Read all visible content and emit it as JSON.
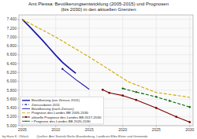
{
  "chart_data": {
    "type": "line",
    "title": "Amt Plessa: Bevölkerungsentwicklung (2005-2015) und Prognosen",
    "subtitle": "(bis 2030) in den aktuellen Grenzen",
    "annotations": [
      "by Hans K. Ohläck",
      "Quellen: Amt Statistik Berlin-Brandenburg, Landkreis Elbe-Elster und Gemeinde"
    ],
    "xlim": [
      2004.5,
      2030.5
    ],
    "ylim": [
      5000,
      7500
    ],
    "xticks": [
      2005,
      2010,
      2015,
      2020,
      2025,
      2030
    ],
    "yticks": [
      {
        "value": 5000,
        "label": "5.000"
      },
      {
        "value": 5200,
        "label": "5.200"
      },
      {
        "value": 5400,
        "label": "5.400"
      },
      {
        "value": 5600,
        "label": "5.600"
      },
      {
        "value": 5800,
        "label": "5.800"
      },
      {
        "value": 6000,
        "label": "6.000"
      },
      {
        "value": 6200,
        "label": "6.200"
      },
      {
        "value": 6400,
        "label": "6.400"
      },
      {
        "value": 6600,
        "label": "6.600"
      },
      {
        "value": 6800,
        "label": "6.800"
      },
      {
        "value": 7000,
        "label": "7.000"
      },
      {
        "value": 7200,
        "label": "7.200"
      },
      {
        "value": 7400,
        "label": "7.400"
      }
    ],
    "grid": true,
    "legend": "lower left",
    "series": [
      {
        "name": "Bevölkerung (vor Zensus 2011)",
        "color": "#1a1aaa",
        "line_style": "solid",
        "x": [
          2005,
          2006,
          2007,
          2008,
          2009,
          2010,
          2011,
          2012,
          2013
        ],
        "values": [
          7400,
          7250,
          7090,
          6930,
          6760,
          6590,
          6430,
          6300,
          6180
        ]
      },
      {
        "name": "Zensusdaten 2011",
        "color": "#1a1aaa",
        "line_style": "dotted",
        "marker": "circle",
        "x": [
          2011
        ],
        "values": [
          6280
        ]
      },
      {
        "name": "Bevölkerung (nach Zensus)",
        "color": "#1a1aaa",
        "line_style": "solid",
        "x": [
          2011,
          2012,
          2013,
          2014,
          2015
        ],
        "values": [
          6280,
          6160,
          6040,
          5930,
          5820
        ]
      },
      {
        "name": "Prognose des Landes BB 2005-2030",
        "color": "#ccaa00",
        "line_style": "dashed",
        "x": [
          2005,
          2010,
          2015,
          2020,
          2021,
          2025,
          2030
        ],
        "values": [
          7400,
          7000,
          6550,
          6070,
          5980,
          5750,
          5640
        ]
      },
      {
        "name": "aktuelle Prognose des Landes BB 2017-2030",
        "color": "#7b0000",
        "line_style": "solid",
        "marker": "square",
        "x": [
          2017,
          2018,
          2020,
          2022,
          2025,
          2028,
          2030
        ],
        "values": [
          5810,
          5740,
          5680,
          5580,
          5400,
          5200,
          5080
        ]
      },
      {
        "name": "• Prognose des Landes BB 2020-2030",
        "color": "#006400",
        "line_style": "dashed",
        "marker": "circle",
        "x": [
          2020,
          2022,
          2025,
          2027,
          2030
        ],
        "values": [
          5840,
          5760,
          5650,
          5560,
          5420
        ]
      }
    ]
  }
}
